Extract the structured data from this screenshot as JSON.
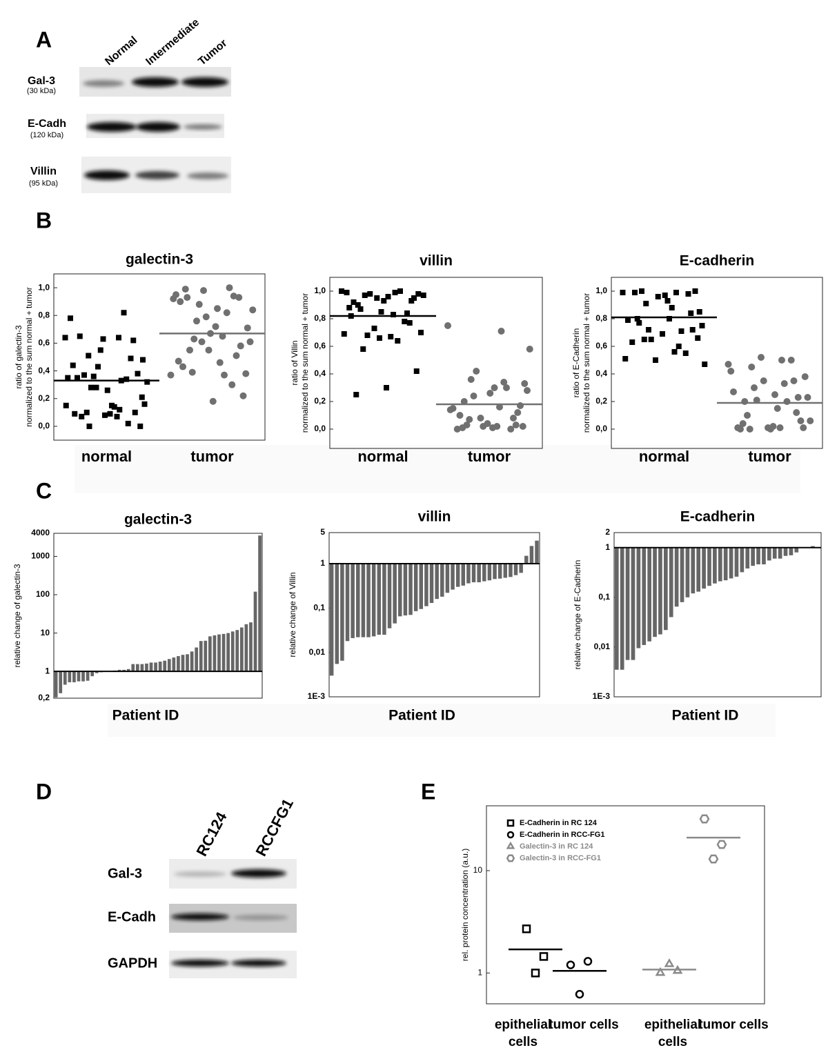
{
  "panel_a": {
    "label": "A",
    "lanes": [
      "Normal",
      "Intermediate",
      "Tumor"
    ],
    "rows": [
      {
        "name": "Gal-3",
        "size": "(30 kDa)"
      },
      {
        "name": "E-Cadh",
        "size": "(120 kDa)"
      },
      {
        "name": "Villin",
        "size": "(95 kDa)"
      }
    ]
  },
  "panel_b": {
    "label": "B"
  },
  "panel_c": {
    "label": "C"
  },
  "panel_d": {
    "label": "D",
    "lanes": [
      "RC124",
      "RCCFG1"
    ],
    "rows": [
      "Gal-3",
      "E-Cadh",
      "GAPDH"
    ]
  },
  "panel_e": {
    "label": "E"
  },
  "chart_data": [
    {
      "type": "strip",
      "title": "galectin-3",
      "ylabel": [
        "ratio of galectin-3",
        "normalized to the sum normal + tumor"
      ],
      "categories": [
        "normal",
        "tumor"
      ],
      "ylim": [
        -0.1,
        1.1
      ],
      "yticks": [
        {
          "value": 0,
          "label": "0,0"
        },
        {
          "value": 0.2,
          "label": "0,2"
        },
        {
          "value": 0.4,
          "label": "0,4"
        },
        {
          "value": 0.6,
          "label": "0,6"
        },
        {
          "value": 0.8,
          "label": "0,8"
        },
        {
          "value": 1,
          "label": "1,0"
        }
      ],
      "series": [
        {
          "color": "#000000",
          "marker": "square",
          "values": [
            0.64,
            0.64,
            0.51,
            0.21,
            0.15,
            0.07,
            0.1,
            0.08,
            0.09,
            0.02,
            0.43,
            0.35,
            0.33,
            0.28,
            0.16,
            0.14,
            0.37,
            0.38,
            0.26,
            0.35,
            0.49,
            0.55,
            0.78,
            0.82,
            0.36,
            0.32,
            0.07,
            0.1,
            0.0,
            0.09,
            0.65,
            0.62,
            0.63,
            0.44,
            0.34,
            0.28,
            0.15,
            0.12,
            0.0,
            0.48
          ]
        },
        {
          "color": "#707070",
          "marker": "circle",
          "values": [
            0.37,
            0.37,
            0.63,
            0.71,
            0.85,
            0.93,
            0.58,
            0.67,
            0.9,
            0.94,
            0.98,
            0.92,
            0.82,
            0.76,
            0.61,
            0.46,
            0.55,
            0.22,
            0.18,
            0.43,
            0.51,
            0.79,
            0.95,
            1.0,
            0.88,
            0.84,
            0.65,
            0.39,
            0.38,
            0.72,
            0.99,
            0.93,
            0.55,
            0.47,
            0.3,
            0.61
          ]
        }
      ],
      "medians": [
        0.33,
        0.67
      ]
    },
    {
      "type": "strip",
      "title": "villin",
      "ylabel": [
        "ratio of Villin",
        "normalized to the sum normal + tumor"
      ],
      "categories": [
        "normal",
        "tumor"
      ],
      "ylim": [
        -0.14,
        1.1
      ],
      "yticks": [
        {
          "value": 0,
          "label": "0,0"
        },
        {
          "value": 0.2,
          "label": "0,2"
        },
        {
          "value": 0.4,
          "label": "0,4"
        },
        {
          "value": 0.6,
          "label": "0,6"
        },
        {
          "value": 0.8,
          "label": "0,8"
        },
        {
          "value": 1,
          "label": "1,0"
        }
      ],
      "series": [
        {
          "color": "#000000",
          "marker": "square",
          "values": [
            1.0,
            0.99,
            0.97,
            0.98,
            0.96,
            0.9,
            0.93,
            0.85,
            0.82,
            0.78,
            0.73,
            0.69,
            0.64,
            0.68,
            0.7,
            0.67,
            0.87,
            0.95,
            0.93,
            0.92,
            0.84,
            0.95,
            0.99,
            1.0,
            0.98,
            0.97,
            0.83,
            0.58,
            0.42,
            0.3,
            0.25,
            0.77,
            0.66,
            0.88
          ]
        },
        {
          "color": "#707070",
          "marker": "circle",
          "values": [
            0.75,
            0.71,
            0.36,
            0.33,
            0.3,
            0.2,
            0.12,
            0.04,
            0.0,
            0.0,
            0.08,
            0.14,
            0.34,
            0.24,
            0.28,
            0.02,
            0.03,
            0.17,
            0.26,
            0.1,
            0.08,
            0.02,
            0.15,
            0.3,
            0.42,
            0.58,
            0.16,
            0.07,
            0.02,
            0.01,
            0.01,
            0.03
          ]
        }
      ],
      "medians": [
        0.82,
        0.18
      ]
    },
    {
      "type": "strip",
      "title": "E-cadherin",
      "ylabel": [
        "ratio of E-Cadherin",
        "normalized to the sum normal + tumor"
      ],
      "categories": [
        "normal",
        "tumor"
      ],
      "ylim": [
        -0.14,
        1.1
      ],
      "yticks": [
        {
          "value": 0,
          "label": "0,0"
        },
        {
          "value": 0.2,
          "label": "0,2"
        },
        {
          "value": 0.4,
          "label": "0,4"
        },
        {
          "value": 0.6,
          "label": "0,6"
        },
        {
          "value": 0.8,
          "label": "0,8"
        },
        {
          "value": 1,
          "label": "1,0"
        }
      ],
      "series": [
        {
          "color": "#000000",
          "marker": "square",
          "values": [
            0.99,
            0.99,
            0.91,
            0.85,
            0.8,
            0.77,
            0.72,
            0.69,
            0.63,
            0.55,
            0.5,
            0.51,
            0.6,
            0.72,
            0.75,
            0.88,
            1.0,
            1.0,
            0.97,
            0.99,
            0.98,
            0.96,
            0.79,
            0.71,
            0.65,
            0.47,
            0.56,
            0.65,
            0.66,
            0.93,
            0.8,
            0.84
          ]
        },
        {
          "color": "#707070",
          "marker": "circle",
          "values": [
            0.47,
            0.5,
            0.45,
            0.38,
            0.25,
            0.2,
            0.23,
            0.01,
            0.01,
            0.5,
            0.52,
            0.42,
            0.33,
            0.3,
            0.23,
            0.15,
            0.1,
            0.06,
            0.0,
            0.0,
            0.35,
            0.35,
            0.27,
            0.2,
            0.21,
            0.06,
            0.01,
            0.0,
            0.01,
            0.02,
            0.04,
            0.12
          ]
        }
      ],
      "medians": [
        0.81,
        0.19
      ]
    },
    {
      "type": "bar",
      "title": "galectin-3",
      "ylabel": "relative change of galectin-3",
      "xlabel": "Patient ID",
      "log_y": true,
      "ylim": [
        0.2,
        4000
      ],
      "yticks": [
        {
          "value": 0.2,
          "label": "0,2"
        },
        1,
        10,
        100,
        1000,
        4000
      ],
      "baseline": 1,
      "color": "#666666",
      "values": [
        0.21,
        0.27,
        0.45,
        0.52,
        0.52,
        0.55,
        0.55,
        0.57,
        0.75,
        0.9,
        0.95,
        0.97,
        1.0,
        1.05,
        1.1,
        1.1,
        1.15,
        1.55,
        1.55,
        1.55,
        1.6,
        1.7,
        1.7,
        1.8,
        1.9,
        2.1,
        2.3,
        2.5,
        2.7,
        2.8,
        3.3,
        4.2,
        6.2,
        6.3,
        8.2,
        8.7,
        9.2,
        9.5,
        10,
        11,
        12,
        14,
        17,
        19,
        120,
        3500
      ]
    },
    {
      "type": "bar",
      "title": "villin",
      "ylabel": "relative change of Villin",
      "xlabel": "Patient ID",
      "log_y": true,
      "ylim": [
        0.001,
        5
      ],
      "yticks": [
        {
          "value": 0.001,
          "label": "1E-3"
        },
        {
          "value": 0.01,
          "label": "0,01"
        },
        {
          "value": 0.1,
          "label": "0,1"
        },
        1,
        5
      ],
      "baseline": 1,
      "color": "#666666",
      "values": [
        0.003,
        0.0055,
        0.0065,
        0.018,
        0.021,
        0.022,
        0.022,
        0.022,
        0.023,
        0.025,
        0.025,
        0.035,
        0.045,
        0.065,
        0.068,
        0.07,
        0.085,
        0.095,
        0.11,
        0.13,
        0.16,
        0.18,
        0.22,
        0.26,
        0.3,
        0.32,
        0.36,
        0.38,
        0.38,
        0.4,
        0.42,
        0.45,
        0.46,
        0.48,
        0.5,
        0.55,
        0.62,
        1.5,
        2.5,
        3.3
      ]
    },
    {
      "type": "bar",
      "title": "E-cadherin",
      "ylabel": "relative change of E-Cadherin",
      "xlabel": "Patient ID",
      "log_y": true,
      "ylim": [
        0.001,
        2
      ],
      "yticks": [
        {
          "value": 0.001,
          "label": "1E-3"
        },
        {
          "value": 0.01,
          "label": "0,01"
        },
        {
          "value": 0.1,
          "label": "0,1"
        },
        1,
        2
      ],
      "baseline": 1,
      "color": "#666666",
      "values": [
        0.0035,
        0.0035,
        0.0055,
        0.0055,
        0.0095,
        0.011,
        0.013,
        0.016,
        0.018,
        0.022,
        0.04,
        0.065,
        0.08,
        0.1,
        0.12,
        0.13,
        0.15,
        0.17,
        0.19,
        0.21,
        0.22,
        0.24,
        0.26,
        0.32,
        0.38,
        0.43,
        0.46,
        0.46,
        0.55,
        0.6,
        0.6,
        0.68,
        0.7,
        0.8,
        1.0,
        1.0,
        1.07,
        1.0
      ]
    },
    {
      "type": "scatter",
      "ylabel": "rel. protein concentration (a.u.)",
      "log_y": true,
      "ylim": [
        0.5,
        43
      ],
      "yticks": [
        1,
        10
      ],
      "categories": [
        "epithelial cells",
        "tumor cells",
        "epithelial cells",
        "tumor cells"
      ],
      "series": [
        {
          "name": "E-Cadherin in RC 124",
          "color": "#000000",
          "marker": "square",
          "category": 0,
          "values": [
            2.7,
            1.45,
            1.0
          ],
          "mean": 1.7
        },
        {
          "name": "E-Cadherin in RCC-FG1",
          "color": "#000000",
          "marker": "circle",
          "category": 1,
          "values": [
            1.2,
            1.3,
            0.62
          ],
          "mean": 1.05
        },
        {
          "name": "Galectin-3 in RC 124",
          "color": "#8a8a8a",
          "marker": "triangle",
          "category": 2,
          "values": [
            1.0,
            1.05,
            1.22
          ],
          "mean": 1.08
        },
        {
          "name": "Galectin-3 in RCC-FG1",
          "color": "#8a8a8a",
          "marker": "hexagon",
          "category": 3,
          "values": [
            32,
            18,
            13
          ],
          "mean": 21
        }
      ]
    }
  ]
}
